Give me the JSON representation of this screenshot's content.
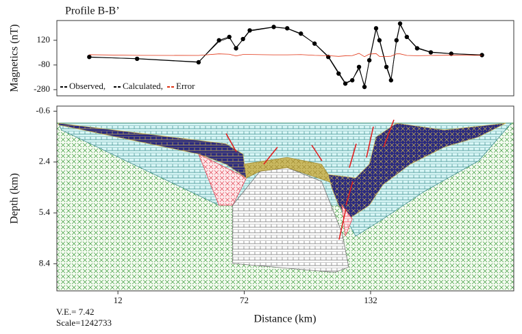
{
  "chart_data": [
    {
      "type": "line",
      "title": "Profile B-B’",
      "y_label": "Magnetics (nT)",
      "xlim": [
        -17,
        200
      ],
      "ylim": [
        -330,
        280
      ],
      "yticks": [
        120,
        -80,
        -280
      ],
      "x": [
        -1.6,
        21.1,
        50.3,
        60,
        64.9,
        68.1,
        71.4,
        74.6,
        86,
        92.4,
        98.9,
        105.4,
        111.9,
        116.8,
        120,
        123.3,
        126.5,
        129.1,
        131.4,
        134.6,
        136.2,
        139.5,
        141.7,
        144.3,
        146,
        149.2,
        154.1,
        160.6,
        170.3,
        184.9
      ],
      "series": [
        {
          "name": "Observed,",
          "color": "#000000",
          "marker": "circle",
          "values": [
            -15,
            -30,
            -58,
            120,
            147,
            55,
            130,
            200,
            228,
            217,
            174,
            93,
            -15,
            -150,
            -231,
            -204,
            -96,
            -258,
            -42,
            217,
            120,
            -96,
            -204,
            120,
            255,
            147,
            55,
            22,
            11,
            0
          ]
        },
        {
          "name": "Calculated,",
          "color": "#000000",
          "values": [
            -18,
            -28,
            -55,
            110,
            140,
            62,
            125,
            195,
            226,
            215,
            170,
            95,
            -10,
            -140,
            -225,
            -200,
            -110,
            -245,
            -50,
            205,
            130,
            -85,
            -195,
            110,
            245,
            150,
            60,
            25,
            12,
            2
          ]
        },
        {
          "name": "Error",
          "color": "#e03010",
          "values": [
            3,
            -2,
            -3,
            10,
            7,
            -7,
            5,
            5,
            2,
            2,
            4,
            -2,
            -5,
            -10,
            -6,
            -4,
            14,
            -13,
            8,
            12,
            -10,
            -11,
            -9,
            10,
            10,
            -3,
            -5,
            -3,
            -1,
            -2
          ]
        }
      ]
    },
    {
      "type": "section",
      "y_label": "Depth (km)",
      "x_label": "Distance (km)",
      "xlim": [
        -17,
        200
      ],
      "ylim": [
        -0.9,
        10.0
      ],
      "xticks": [
        12,
        72,
        132
      ],
      "yticks": [
        -0.6,
        2.4,
        5.4,
        8.4
      ],
      "notes": [
        "V.E.= 7.42",
        "Scale=1242733"
      ],
      "bodies": [
        {
          "color": "#3a9a3a",
          "background": "#f4fbf0",
          "x": [
            -17,
            200,
            200,
            -17
          ],
          "depth": [
            0.1,
            0.1,
            10.0,
            10.0
          ]
        },
        {
          "color": "#3a8a8a",
          "background": "#d8f6f6",
          "x": [
            -16.2,
            198.8,
            183.3,
            157.3,
            137.9,
            124.9,
            116.8,
            66.5,
            60,
            -14.8
          ],
          "depth": [
            0.11,
            0.11,
            2.33,
            4.15,
            5.76,
            6.77,
            4.95,
            4.95,
            4.95,
            0.51
          ]
        },
        {
          "color": "#e04050",
          "background": "#fde8ea",
          "x": [
            50.3,
            73,
            66.5,
            60
          ],
          "depth": [
            1.93,
            3.34,
            4.95,
            4.95
          ]
        },
        {
          "color": "#707070",
          "background": "#ffffff",
          "x": [
            66.5,
            79.5,
            92.4,
            108.7,
            118.4,
            121.6,
            115.1,
            66.5
          ],
          "depth": [
            4.95,
            2.94,
            2.73,
            3.54,
            6.57,
            8.59,
            8.91,
            8.38
          ]
        },
        {
          "color": "#a08a30",
          "background": "#c9b860",
          "x": [
            71.4,
            92.4,
            108.7,
            111.9,
            124.9,
            121.6,
            111.9,
            92.4,
            79.5,
            73
          ],
          "depth": [
            2.53,
            2.13,
            2.53,
            3.14,
            3.34,
            4.15,
            3.54,
            2.73,
            2.94,
            3.34
          ]
        },
        {
          "color": "#c8b050",
          "background": "#2a2a80",
          "x": [
            -16.2,
            63.3,
            71.4,
            73,
            63.3,
            50.3,
            -16.2
          ],
          "depth": [
            0.11,
            1.32,
            1.93,
            3.34,
            2.53,
            1.93,
            0.21
          ]
        },
        {
          "color": "#c8b050",
          "background": "#2a2a80",
          "x": [
            111.9,
            124.9,
            131.4,
            134.6,
            144.3,
            167,
            196.2,
            183.3,
            167,
            150.8,
            137.9,
            131.4,
            121.6,
            116.8,
            113.6
          ],
          "depth": [
            3.14,
            3.34,
            2.53,
            0.92,
            0.11,
            0.51,
            0.11,
            0.92,
            1.52,
            2.53,
            3.74,
            4.95,
            5.76,
            4.95,
            3.94
          ]
        },
        {
          "color": "#e04050",
          "background": "#fde8ea",
          "x": [
            118.4,
            123.3,
            120
          ],
          "depth": [
            4.95,
            5.76,
            6.77
          ]
        }
      ]
    }
  ]
}
